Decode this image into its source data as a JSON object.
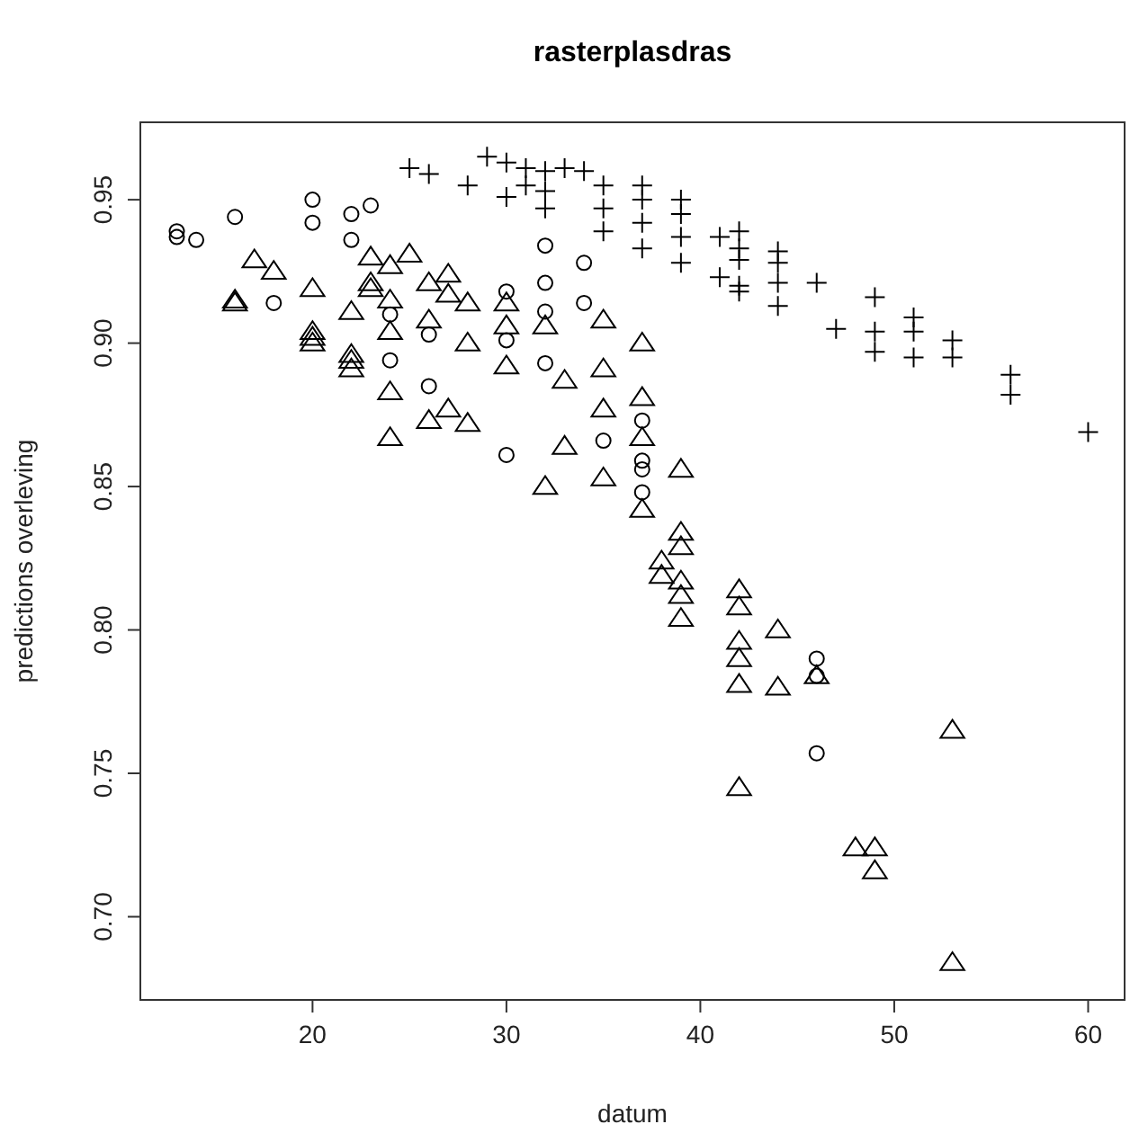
{
  "chart_data": {
    "type": "scatter",
    "title": "rasterplasdras",
    "xlabel": "datum",
    "ylabel": "predictions overleving",
    "xlim": [
      11.12,
      61.88
    ],
    "ylim": [
      0.671,
      0.977
    ],
    "xticks": [
      20,
      30,
      40,
      50,
      60
    ],
    "yticks": [
      {
        "value": 0.7,
        "label": "0.70"
      },
      {
        "value": 0.75,
        "label": "0.75"
      },
      {
        "value": 0.8,
        "label": "0.80"
      },
      {
        "value": 0.85,
        "label": "0.85"
      },
      {
        "value": 0.9,
        "label": "0.90"
      },
      {
        "value": 0.95,
        "label": "0.95"
      }
    ],
    "grid": false,
    "series": [
      {
        "color": "#000000",
        "marker": "circle",
        "x": [
          13,
          13,
          14,
          16,
          18,
          20,
          20,
          22,
          22,
          23,
          24,
          24,
          26,
          26,
          30,
          30,
          30,
          32,
          32,
          32,
          32,
          34,
          34,
          35,
          37,
          37,
          37,
          37,
          46,
          46,
          46
        ],
        "values": [
          0.939,
          0.937,
          0.936,
          0.944,
          0.914,
          0.95,
          0.942,
          0.945,
          0.936,
          0.948,
          0.91,
          0.894,
          0.903,
          0.885,
          0.918,
          0.901,
          0.861,
          0.934,
          0.921,
          0.911,
          0.893,
          0.928,
          0.914,
          0.866,
          0.873,
          0.859,
          0.856,
          0.848,
          0.79,
          0.784,
          0.757
        ]
      },
      {
        "color": "#000000",
        "marker": "triangle",
        "x": [
          16,
          16,
          17,
          18,
          20,
          20,
          20,
          20,
          22,
          22,
          22,
          22,
          23,
          23,
          23,
          24,
          24,
          24,
          24,
          24,
          25,
          26,
          26,
          26,
          27,
          27,
          27,
          28,
          28,
          28,
          30,
          30,
          30,
          32,
          32,
          33,
          33,
          35,
          35,
          35,
          35,
          37,
          37,
          37,
          37,
          38,
          38,
          39,
          39,
          39,
          39,
          39,
          39,
          42,
          42,
          42,
          42,
          42,
          42,
          44,
          44,
          46,
          48,
          49,
          49,
          53,
          53
        ],
        "values": [
          0.915,
          0.914,
          0.929,
          0.925,
          0.919,
          0.904,
          0.902,
          0.9,
          0.911,
          0.896,
          0.894,
          0.891,
          0.93,
          0.921,
          0.919,
          0.927,
          0.915,
          0.904,
          0.883,
          0.867,
          0.931,
          0.921,
          0.908,
          0.873,
          0.924,
          0.917,
          0.877,
          0.914,
          0.9,
          0.872,
          0.914,
          0.906,
          0.892,
          0.906,
          0.85,
          0.887,
          0.864,
          0.908,
          0.891,
          0.877,
          0.853,
          0.9,
          0.881,
          0.867,
          0.842,
          0.824,
          0.819,
          0.856,
          0.834,
          0.829,
          0.817,
          0.812,
          0.804,
          0.814,
          0.808,
          0.796,
          0.79,
          0.781,
          0.745,
          0.8,
          0.78,
          0.784,
          0.724,
          0.724,
          0.716,
          0.765,
          0.684
        ]
      },
      {
        "color": "#000000",
        "marker": "cross",
        "x": [
          25,
          26,
          28,
          29,
          30,
          30,
          31,
          31,
          32,
          32,
          32,
          33,
          34,
          35,
          35,
          35,
          37,
          37,
          37,
          37,
          39,
          39,
          39,
          39,
          41,
          41,
          42,
          42,
          42,
          42,
          42,
          44,
          44,
          44,
          44,
          46,
          47,
          49,
          49,
          49,
          51,
          51,
          51,
          53,
          53,
          56,
          56,
          60
        ],
        "values": [
          0.961,
          0.959,
          0.955,
          0.965,
          0.963,
          0.951,
          0.961,
          0.955,
          0.96,
          0.953,
          0.947,
          0.961,
          0.96,
          0.955,
          0.947,
          0.939,
          0.955,
          0.95,
          0.942,
          0.933,
          0.95,
          0.945,
          0.937,
          0.928,
          0.937,
          0.923,
          0.939,
          0.933,
          0.929,
          0.92,
          0.918,
          0.932,
          0.928,
          0.921,
          0.913,
          0.921,
          0.905,
          0.916,
          0.904,
          0.897,
          0.909,
          0.904,
          0.895,
          0.901,
          0.895,
          0.889,
          0.882,
          0.869
        ]
      }
    ]
  }
}
